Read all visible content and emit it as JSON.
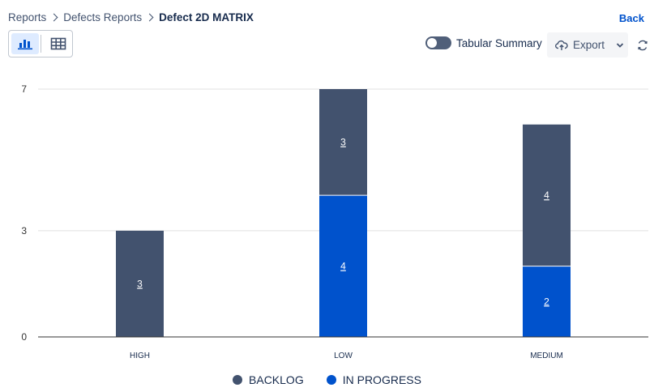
{
  "breadcrumb": {
    "items": [
      "Reports",
      "Defects Reports"
    ],
    "current": "Defect 2D MATRIX"
  },
  "header": {
    "back_label": "Back"
  },
  "toolbar": {
    "view_chart_icon": "bar-chart-icon",
    "view_table_icon": "table-grid-icon",
    "toggle_label": "Tabular Summary",
    "toggle_on": false,
    "export_label": "Export",
    "refresh_icon": "refresh-icon"
  },
  "colors": {
    "backlog": "#42526e",
    "in_progress": "#0052cc",
    "axis": "#333333",
    "grid": "#e0e0e0"
  },
  "chart_data": {
    "type": "bar",
    "stacked": true,
    "categories": [
      "HIGH",
      "LOW",
      "MEDIUM"
    ],
    "series": [
      {
        "name": "IN PROGRESS",
        "values": [
          0,
          4,
          2
        ],
        "color": "#0052cc"
      },
      {
        "name": "BACKLOG",
        "values": [
          3,
          3,
          4
        ],
        "color": "#42526e"
      }
    ],
    "y_ticks": [
      0,
      3,
      7
    ],
    "ylim": [
      0,
      7
    ],
    "grid": true,
    "legend_position": "bottom"
  },
  "legend": {
    "items": [
      {
        "label": "BACKLOG",
        "color": "#42526e"
      },
      {
        "label": "IN PROGRESS",
        "color": "#0052cc"
      }
    ]
  }
}
